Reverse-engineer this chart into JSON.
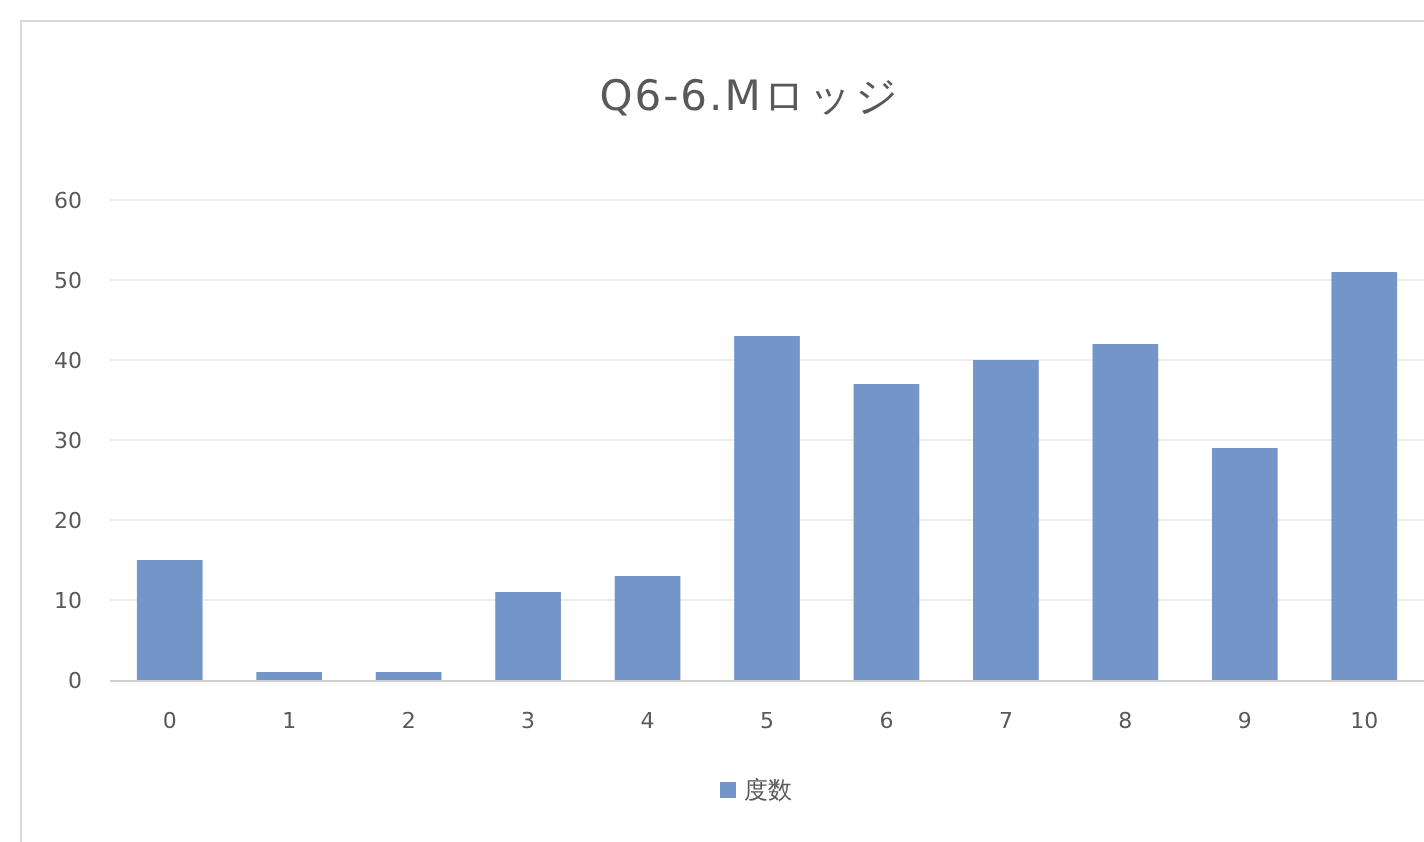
{
  "chart_data": {
    "type": "bar",
    "title": "Q6-6.Mロッジ",
    "categories": [
      "0",
      "1",
      "2",
      "3",
      "4",
      "5",
      "6",
      "7",
      "8",
      "9",
      "10"
    ],
    "series": [
      {
        "name": "度数",
        "color": "#7395c8",
        "values": [
          15,
          1,
          1,
          11,
          13,
          43,
          37,
          40,
          42,
          29,
          51
        ]
      }
    ],
    "ylim": [
      0,
      60
    ],
    "yticks": [
      0,
      10,
      20,
      30,
      40,
      50,
      60
    ],
    "grid": "y",
    "legend": "bottom"
  }
}
